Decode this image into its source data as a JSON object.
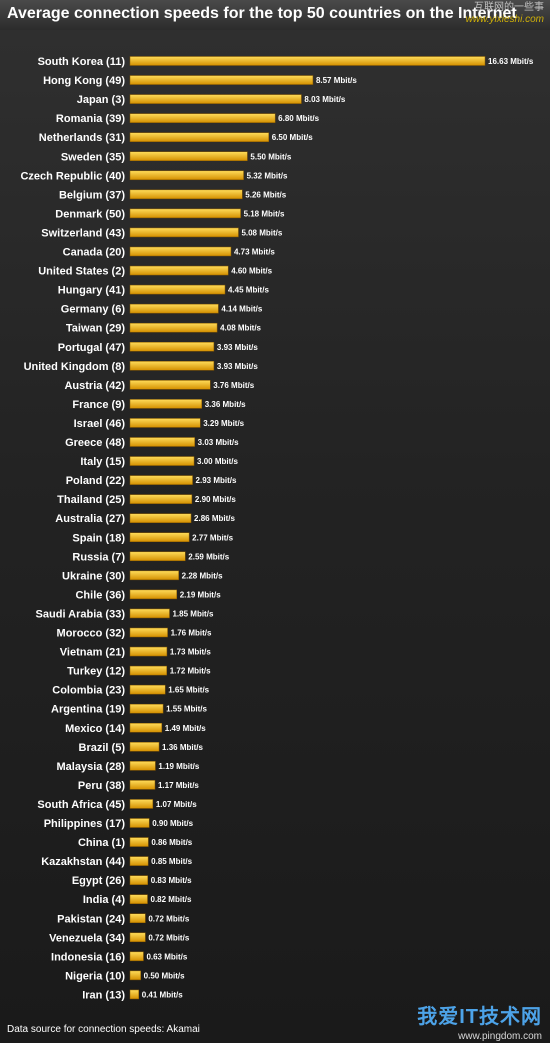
{
  "title": "Average connection speeds for the top 50 countries on the Internet",
  "source": "Data source for connection speeds: Akamai",
  "watermark_top": {
    "text": "互联网的一些事",
    "url": "www.yixieshi.com"
  },
  "watermark_bottom": {
    "logo": "我爱IT技术网",
    "site": "www.pingdom.com"
  },
  "colors": {
    "bar_light": "#ffdc5a",
    "bar_dark": "#d49000",
    "label": "#ffffff"
  },
  "chart_data": {
    "type": "bar",
    "orientation": "horizontal",
    "unit": "Mbit/s",
    "xlim": [
      0,
      16.63
    ],
    "grid": false,
    "categories": [
      "South Korea (11)",
      "Hong Kong (49)",
      "Japan (3)",
      "Romania (39)",
      "Netherlands (31)",
      "Sweden (35)",
      "Czech Republic (40)",
      "Belgium (37)",
      "Denmark (50)",
      "Switzerland (43)",
      "Canada (20)",
      "United States (2)",
      "Hungary (41)",
      "Germany (6)",
      "Taiwan (29)",
      "Portugal (47)",
      "United Kingdom (8)",
      "Austria (42)",
      "France (9)",
      "Israel (46)",
      "Greece (48)",
      "Italy (15)",
      "Poland (22)",
      "Thailand (25)",
      "Australia (27)",
      "Spain (18)",
      "Russia (7)",
      "Ukraine (30)",
      "Chile (36)",
      "Saudi Arabia (33)",
      "Morocco (32)",
      "Vietnam (21)",
      "Turkey (12)",
      "Colombia (23)",
      "Argentina (19)",
      "Mexico (14)",
      "Brazil (5)",
      "Malaysia (28)",
      "Peru (38)",
      "South Africa (45)",
      "Philippines (17)",
      "China (1)",
      "Kazakhstan (44)",
      "Egypt (26)",
      "India (4)",
      "Pakistan (24)",
      "Venezuela (34)",
      "Indonesia (16)",
      "Nigeria (10)",
      "Iran (13)"
    ],
    "values": [
      16.63,
      8.57,
      8.03,
      6.8,
      6.5,
      5.5,
      5.32,
      5.26,
      5.18,
      5.08,
      4.73,
      4.6,
      4.45,
      4.14,
      4.08,
      3.93,
      3.93,
      3.76,
      3.36,
      3.29,
      3.03,
      3.0,
      2.93,
      2.9,
      2.86,
      2.77,
      2.59,
      2.28,
      2.19,
      1.85,
      1.76,
      1.73,
      1.72,
      1.65,
      1.55,
      1.49,
      1.36,
      1.19,
      1.17,
      1.07,
      0.9,
      0.86,
      0.85,
      0.83,
      0.82,
      0.72,
      0.72,
      0.63,
      0.5,
      0.41
    ]
  }
}
